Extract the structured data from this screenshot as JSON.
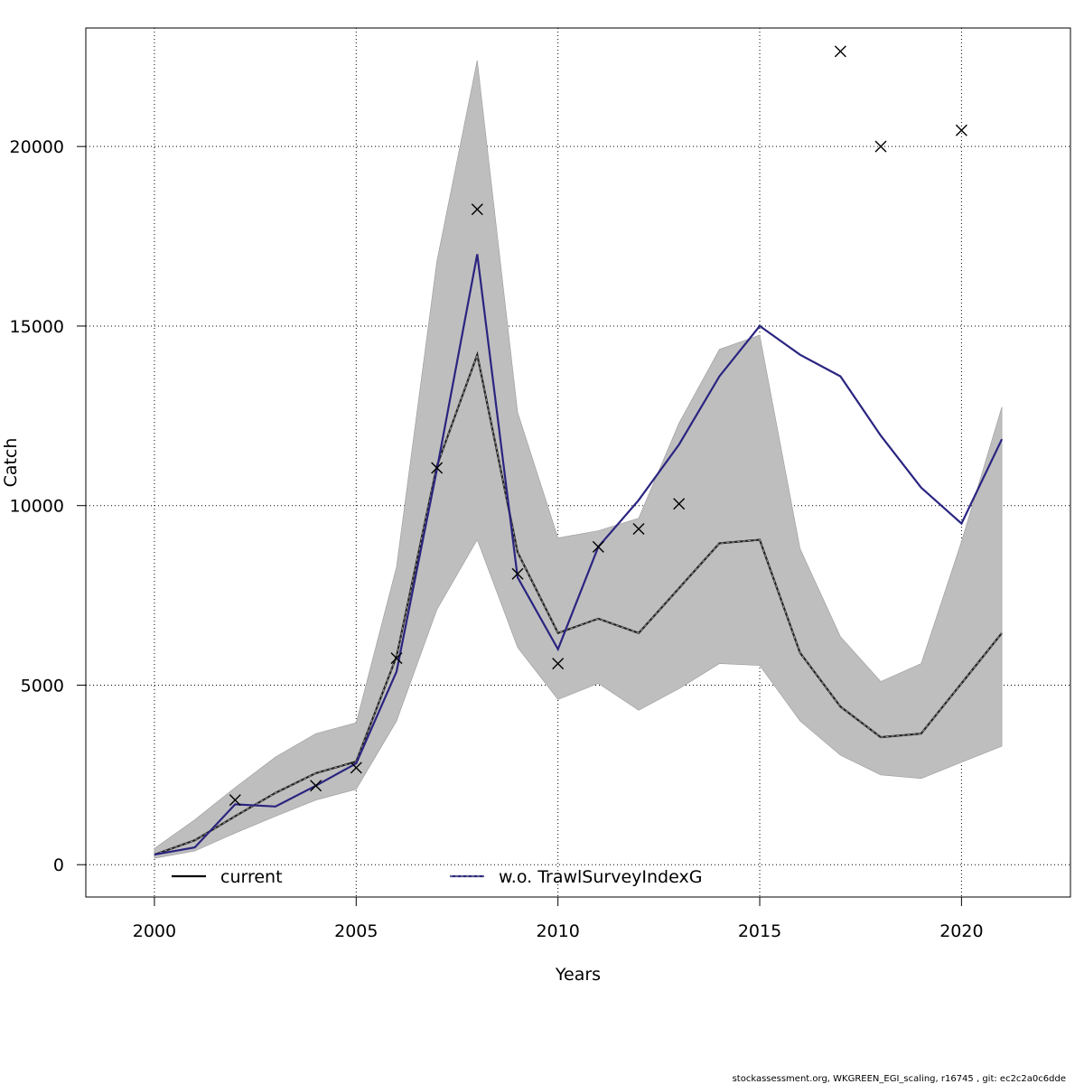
{
  "footer": "stockassessment.org, WKGREEN_EGI_scaling, r16745 , git: ec2c2a0c6dde",
  "colors": {
    "band": "#bebebe",
    "current": "#222222",
    "alt": "#2a2480",
    "points": "#000000"
  },
  "chart_data": {
    "type": "line",
    "title": "",
    "xlabel": "Years",
    "ylabel": "Catch",
    "xlim": [
      1998.3,
      2022.7
    ],
    "ylim": [
      -900,
      23300
    ],
    "x_ticks": [
      2000,
      2005,
      2010,
      2015,
      2020
    ],
    "y_ticks": [
      0,
      5000,
      10000,
      15000,
      20000
    ],
    "grid": true,
    "legend": {
      "placement": "bottom",
      "entries": [
        "current",
        "w.o. TrawlSurveyIndexG"
      ]
    },
    "x": [
      2000,
      2001,
      2002,
      2003,
      2004,
      2005,
      2006,
      2007,
      2008,
      2009,
      2010,
      2011,
      2012,
      2013,
      2014,
      2015,
      2016,
      2017,
      2018,
      2019,
      2020,
      2021
    ],
    "band": {
      "lower": [
        180,
        380,
        880,
        1350,
        1800,
        2100,
        4000,
        7100,
        9050,
        6050,
        4600,
        5050,
        4300,
        4900,
        5600,
        5550,
        4000,
        3050,
        2500,
        2400,
        2850,
        3300
      ],
      "upper": [
        450,
        1250,
        2150,
        3000,
        3650,
        3950,
        8300,
        16800,
        22400,
        12600,
        9100,
        9300,
        9650,
        12300,
        14350,
        14750,
        8800,
        6350,
        5100,
        5600,
        9000,
        12750
      ]
    },
    "series": [
      {
        "name": "current",
        "values": [
          280,
          680,
          1350,
          2000,
          2550,
          2870,
          5800,
          11100,
          14200,
          8700,
          6450,
          6850,
          6450,
          7700,
          8950,
          9050,
          5900,
          4400,
          3550,
          3650,
          5050,
          6450
        ]
      },
      {
        "name": "w.o. TrawlSurveyIndexG",
        "values": [
          280,
          480,
          1680,
          1620,
          2200,
          2820,
          5380,
          11000,
          17000,
          8000,
          6000,
          8850,
          10150,
          11700,
          13600,
          15000,
          14200,
          13600,
          11950,
          10500,
          9500,
          11850
        ]
      }
    ],
    "observations": {
      "x": [
        2002,
        2004,
        2005,
        2006,
        2007,
        2008,
        2009,
        2010,
        2011,
        2012,
        2013,
        2017,
        2018,
        2020
      ],
      "y": [
        1800,
        2200,
        2700,
        5750,
        11050,
        18250,
        8100,
        5600,
        8850,
        9350,
        10050,
        22650,
        20000,
        20450
      ]
    }
  }
}
